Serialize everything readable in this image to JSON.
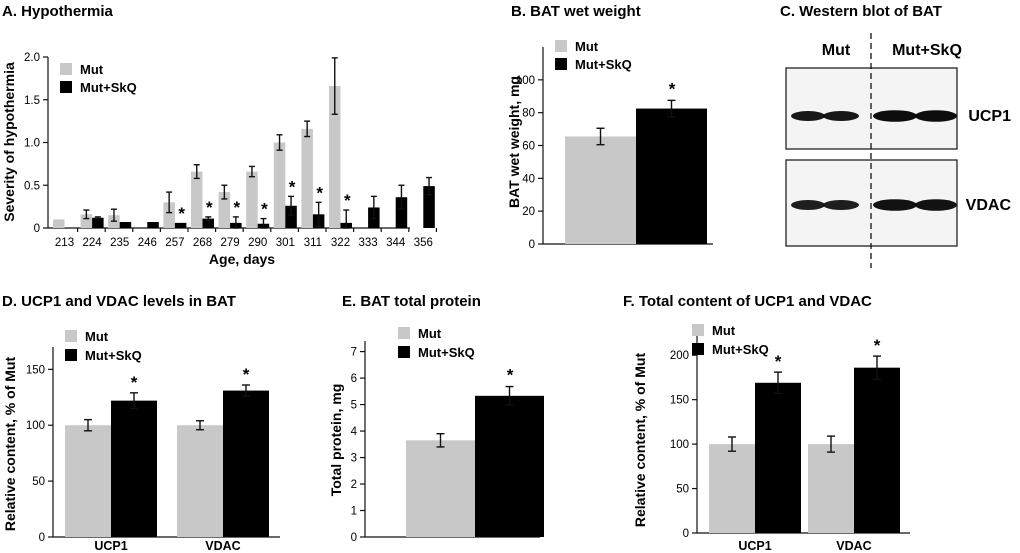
{
  "colors": {
    "mut": "#c8c8c8",
    "mut_skq": "#000000",
    "axis": "#111111"
  },
  "legend": {
    "mut": "Mut",
    "mut_skq": "Mut+SkQ"
  },
  "chart_data": [
    {
      "id": "A",
      "type": "bar",
      "title": "A. Hypothermia",
      "xlabel": "Age, days",
      "ylabel": "Severity of hypothermia",
      "ylim": [
        0,
        2.0
      ],
      "yticks": [
        "0",
        "0.5",
        "1.0",
        "1.5",
        "2.0"
      ],
      "categories": [
        "213",
        "224",
        "235",
        "246",
        "257",
        "268",
        "279",
        "290",
        "301",
        "311",
        "322",
        "333",
        "344",
        "356"
      ],
      "series": [
        {
          "name": "Mut",
          "values": [
            0.1,
            0.16,
            0.15,
            0.0,
            0.3,
            0.66,
            0.42,
            0.66,
            1.0,
            1.16,
            1.66,
            null,
            null,
            null
          ],
          "errors": [
            0.0,
            0.05,
            0.07,
            0.0,
            0.12,
            0.08,
            0.08,
            0.06,
            0.09,
            0.09,
            0.33,
            null,
            null,
            null
          ]
        },
        {
          "name": "Mut+SkQ",
          "values": [
            null,
            0.12,
            0.07,
            0.07,
            0.06,
            0.11,
            0.06,
            0.05,
            0.26,
            0.16,
            0.06,
            0.24,
            0.36,
            0.49
          ],
          "errors": [
            null,
            0.01,
            0.0,
            0.0,
            0.0,
            0.02,
            0.07,
            0.06,
            0.11,
            0.14,
            0.15,
            0.13,
            0.14,
            0.1
          ]
        }
      ],
      "significant": [
        "257",
        "268",
        "279",
        "290",
        "301",
        "311",
        "322"
      ],
      "annotation": "*"
    },
    {
      "id": "B",
      "type": "bar",
      "title": "B. BAT wet weight",
      "ylabel": "BAT wet weight, mg",
      "ylim": [
        0,
        120
      ],
      "yticks": [
        "0",
        "20",
        "40",
        "60",
        "80",
        "100"
      ],
      "series": [
        {
          "name": "Mut",
          "values": [
            65.5
          ],
          "errors": [
            5
          ]
        },
        {
          "name": "Mut+SkQ",
          "values": [
            82.5
          ],
          "errors": [
            5
          ]
        }
      ],
      "annotation": "*"
    },
    {
      "id": "C",
      "type": "western_blot",
      "title": "C. Western blot of BAT",
      "columns": [
        "Mut",
        "Mut+SkQ"
      ],
      "rows": [
        "UCP1",
        "VDAC"
      ]
    },
    {
      "id": "D",
      "type": "bar",
      "title": "D. UCP1 and VDAC levels in BAT",
      "ylabel": "Relative content, % of Mut",
      "ylim": [
        0,
        170
      ],
      "yticks": [
        "0",
        "50",
        "100",
        "150"
      ],
      "categories": [
        "UCP1",
        "VDAC"
      ],
      "series": [
        {
          "name": "Mut",
          "values": [
            100,
            100
          ],
          "errors": [
            5,
            4
          ]
        },
        {
          "name": "Mut+SkQ",
          "values": [
            122,
            131
          ],
          "errors": [
            7,
            5
          ]
        }
      ],
      "annotation": "*"
    },
    {
      "id": "E",
      "type": "bar",
      "title": "E. BAT total protein",
      "ylabel": "Total protein, mg",
      "ylim": [
        0,
        7.4
      ],
      "yticks": [
        "0",
        "1",
        "2",
        "3",
        "4",
        "5",
        "6",
        "7"
      ],
      "series": [
        {
          "name": "Mut",
          "values": [
            3.65
          ],
          "errors": [
            0.25
          ]
        },
        {
          "name": "Mut+SkQ",
          "values": [
            5.33
          ],
          "errors": [
            0.35
          ]
        }
      ],
      "annotation": "*"
    },
    {
      "id": "F",
      "type": "bar",
      "title": "F. Total content of UCP1 and VDAC",
      "ylabel": "Relative content, % of Mut",
      "ylim": [
        0,
        225
      ],
      "yticks": [
        "0",
        "50",
        "100",
        "150",
        "200"
      ],
      "categories": [
        "UCP1",
        "VDAC"
      ],
      "series": [
        {
          "name": "Mut",
          "values": [
            100,
            100
          ],
          "errors": [
            8,
            9
          ]
        },
        {
          "name": "Mut+SkQ",
          "values": [
            169,
            186
          ],
          "errors": [
            12,
            13
          ]
        }
      ],
      "annotation": "*"
    }
  ]
}
